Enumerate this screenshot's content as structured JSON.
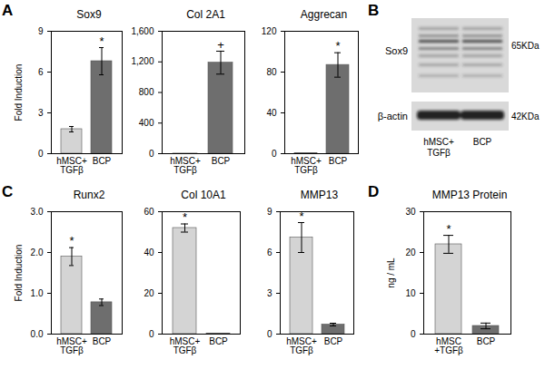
{
  "chart_data": [
    {
      "type": "bar",
      "panel": "A",
      "title": "Sox9",
      "y_label": "Fold Induction",
      "categories": [
        "hMSC+\nTGFβ",
        "BCP"
      ],
      "values": [
        1.8,
        6.8
      ],
      "errors": [
        0.2,
        1.0
      ],
      "significance": [
        null,
        "*"
      ],
      "colors": [
        "#d4d4d4",
        "#6e6e6e"
      ],
      "ylim": [
        0,
        9
      ],
      "yticks": [
        0,
        3,
        6,
        9
      ]
    },
    {
      "type": "bar",
      "title": "Col 2A1",
      "categories": [
        "hMSC+\nTGFβ",
        "BCP"
      ],
      "values": [
        1,
        1190
      ],
      "errors": [
        0,
        150
      ],
      "significance": [
        null,
        "+"
      ],
      "colors": [
        "#d4d4d4",
        "#6e6e6e"
      ],
      "ylim": [
        0,
        1600
      ],
      "yticks": [
        0,
        400,
        800,
        1200,
        1600
      ]
    },
    {
      "type": "bar",
      "title": "Aggrecan",
      "categories": [
        "hMSC+\nTGFβ",
        "BCP"
      ],
      "values": [
        0.5,
        87
      ],
      "errors": [
        0,
        12
      ],
      "significance": [
        null,
        "*"
      ],
      "colors": [
        "#d4d4d4",
        "#6e6e6e"
      ],
      "ylim": [
        0,
        120
      ],
      "yticks": [
        0,
        40,
        80,
        120
      ]
    },
    {
      "type": "bar",
      "panel": "C",
      "title": "Runx2",
      "y_label": "Fold Induction",
      "categories": [
        "hMSC+\nTGFβ",
        "BCP"
      ],
      "values": [
        1.9,
        0.78
      ],
      "errors": [
        0.22,
        0.08
      ],
      "significance": [
        "*",
        null
      ],
      "colors": [
        "#d4d4d4",
        "#6e6e6e"
      ],
      "ylim": [
        0,
        3
      ],
      "yticks": [
        0,
        1,
        2,
        3
      ]
    },
    {
      "type": "bar",
      "title": "Col 10A1",
      "categories": [
        "hMSC+\nTGFβ",
        "BCP"
      ],
      "values": [
        52,
        0.3
      ],
      "errors": [
        2,
        0
      ],
      "significance": [
        "*",
        null
      ],
      "colors": [
        "#d4d4d4",
        "#6e6e6e"
      ],
      "ylim": [
        0,
        60
      ],
      "yticks": [
        0,
        20,
        40,
        60
      ]
    },
    {
      "type": "bar",
      "title": "MMP13",
      "categories": [
        "hMSC+\nTGFβ",
        "BCP"
      ],
      "values": [
        7.1,
        0.7
      ],
      "errors": [
        1.1,
        0.1
      ],
      "significance": [
        "*",
        null
      ],
      "colors": [
        "#d4d4d4",
        "#6e6e6e"
      ],
      "ylim": [
        0,
        9
      ],
      "yticks": [
        0,
        3,
        6,
        9
      ]
    },
    {
      "type": "bar",
      "panel": "D",
      "title": "MMP13 Protein",
      "y_label": "ng / mL",
      "categories": [
        "hMSC\n+TGFβ",
        "BCP"
      ],
      "values": [
        22,
        2
      ],
      "errors": [
        2.2,
        0.7
      ],
      "significance": [
        "*",
        null
      ],
      "colors": [
        "#d4d4d4",
        "#6e6e6e"
      ],
      "ylim": [
        0,
        30
      ],
      "yticks": [
        0,
        10,
        20,
        30
      ]
    }
  ],
  "blot": {
    "panel": "B",
    "rows": [
      {
        "label": "Sox9",
        "size": "65KDa"
      },
      {
        "label": "β-actin",
        "size": "42KDa"
      }
    ],
    "lanes": [
      "hMSC+\nTGFβ",
      "BCP"
    ]
  }
}
